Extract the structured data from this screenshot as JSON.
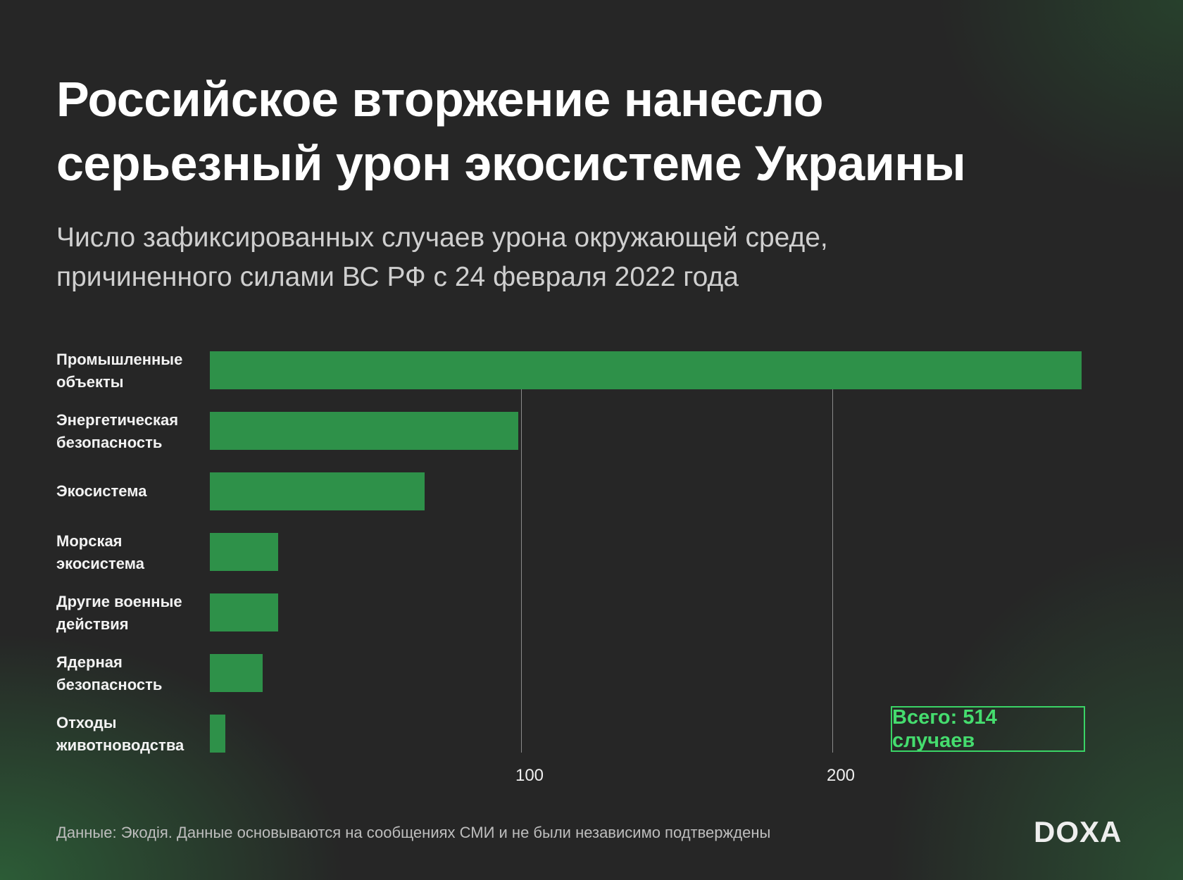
{
  "title_line1": "Российское вторжение нанесло",
  "title_line2": "серьезный урон экосистеме Украины",
  "subtitle_line1": "Число зафиксированных случаев урона окружающей среде,",
  "subtitle_line2": "причиненного силами ВС РФ с 24 февраля 2022 года",
  "total_label": "Всего: 514 случаев",
  "footer": "Данные: Экодія. Данные основываются на сообщениях СМИ и не были независимо подтверждены",
  "logo": "DOXA",
  "colors": {
    "bar": "#2e9149",
    "accent": "#45dc6e",
    "background": "#262626"
  },
  "chart_data": {
    "type": "bar",
    "orientation": "horizontal",
    "categories": [
      [
        "Промышленные",
        "объекты"
      ],
      [
        "Энергетическая",
        "безопасность"
      ],
      [
        "Экосистема",
        ""
      ],
      [
        "Морская",
        "экосистема"
      ],
      [
        "Другие военные",
        "действия"
      ],
      [
        "Ядерная",
        "безопасность"
      ],
      [
        "Отходы",
        "животноводства"
      ]
    ],
    "values": [
      280,
      99,
      69,
      22,
      22,
      17,
      5
    ],
    "xticks": [
      "100",
      "200"
    ],
    "xtick_values": [
      100,
      200
    ],
    "xlim": [
      0,
      285
    ],
    "grid": "vertical"
  }
}
